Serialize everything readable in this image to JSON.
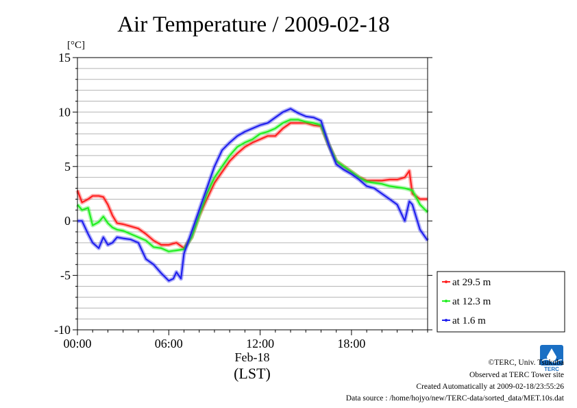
{
  "chart_data": {
    "type": "line",
    "title": "Air Temperature / 2009-02-18",
    "ylabel": "[°C]",
    "xlabel": "(LST)",
    "date_label": "Feb-18",
    "ylim": [
      -10,
      15
    ],
    "yticks": [
      15,
      10,
      5,
      0,
      -5,
      -10
    ],
    "ytick_labels": [
      "15",
      "10",
      "5",
      "0",
      "-5",
      "-10"
    ],
    "xlim": [
      0,
      23
    ],
    "xticks": [
      0,
      6,
      12,
      18
    ],
    "xtick_labels": [
      "00:00",
      "06:00",
      "12:00",
      "18:00"
    ],
    "grid": "horizontal, every 1 °C",
    "legend_position": "right, below plot top",
    "x_unit": "hours LST",
    "series": [
      {
        "name": "at 29.5 m",
        "color": "#ff2020",
        "x": [
          0,
          0.3,
          0.7,
          1.0,
          1.4,
          1.7,
          2.0,
          2.3,
          2.6,
          3.0,
          3.5,
          4.0,
          4.5,
          5.0,
          5.5,
          6.0,
          6.5,
          7.0,
          7.5,
          8.0,
          8.5,
          9.0,
          9.5,
          10.0,
          10.5,
          11.0,
          11.5,
          12.0,
          12.5,
          13.0,
          13.5,
          14.0,
          14.5,
          15.0,
          15.5,
          16.0,
          16.5,
          17.0,
          17.5,
          18.0,
          18.5,
          19.0,
          19.5,
          20.0,
          20.5,
          21.0,
          21.5,
          21.8,
          22.0,
          22.5,
          23.0
        ],
        "values": [
          2.8,
          1.7,
          2.0,
          2.3,
          2.3,
          2.2,
          1.5,
          0.5,
          -0.2,
          -0.3,
          -0.5,
          -0.7,
          -1.2,
          -1.8,
          -2.2,
          -2.2,
          -2.0,
          -2.5,
          -1.5,
          0.5,
          2.0,
          3.5,
          4.5,
          5.5,
          6.2,
          6.8,
          7.2,
          7.5,
          7.8,
          7.8,
          8.5,
          9.0,
          9.0,
          9.0,
          8.8,
          8.7,
          7.0,
          5.5,
          5.0,
          4.5,
          4.0,
          3.7,
          3.7,
          3.7,
          3.8,
          3.8,
          4.0,
          4.6,
          2.5,
          2.0,
          2.0
        ]
      },
      {
        "name": "at 12.3 m",
        "color": "#20ee20",
        "x": [
          0,
          0.3,
          0.7,
          1.0,
          1.4,
          1.7,
          2.0,
          2.3,
          2.6,
          3.0,
          3.5,
          4.0,
          4.5,
          5.0,
          5.5,
          6.0,
          6.5,
          7.0,
          7.5,
          8.0,
          8.5,
          9.0,
          9.5,
          10.0,
          10.5,
          11.0,
          11.5,
          12.0,
          12.5,
          13.0,
          13.5,
          14.0,
          14.5,
          15.0,
          15.5,
          16.0,
          16.5,
          17.0,
          17.5,
          18.0,
          18.5,
          19.0,
          19.5,
          20.0,
          20.5,
          21.0,
          21.5,
          22.0,
          22.5,
          23.0
        ],
        "values": [
          1.5,
          1.0,
          1.2,
          -0.4,
          -0.1,
          0.4,
          -0.2,
          -0.6,
          -0.8,
          -0.9,
          -1.2,
          -1.5,
          -1.8,
          -2.4,
          -2.5,
          -2.8,
          -2.7,
          -2.6,
          -1.5,
          0.5,
          2.5,
          4.0,
          5.0,
          6.0,
          6.8,
          7.2,
          7.5,
          8.0,
          8.2,
          8.5,
          9.0,
          9.3,
          9.3,
          9.1,
          9.0,
          8.8,
          7.0,
          5.5,
          5.0,
          4.5,
          4.0,
          3.6,
          3.5,
          3.4,
          3.2,
          3.1,
          3.0,
          2.8,
          1.5,
          0.8
        ]
      },
      {
        "name": "at 1.6 m",
        "color": "#2020ee",
        "x": [
          0,
          0.3,
          0.7,
          1.0,
          1.4,
          1.7,
          2.0,
          2.3,
          2.6,
          3.0,
          3.5,
          4.0,
          4.5,
          5.0,
          5.5,
          6.0,
          6.3,
          6.5,
          6.8,
          7.0,
          7.5,
          8.0,
          8.5,
          9.0,
          9.5,
          10.0,
          10.5,
          11.0,
          11.5,
          12.0,
          12.5,
          13.0,
          13.5,
          14.0,
          14.5,
          15.0,
          15.5,
          16.0,
          16.5,
          17.0,
          17.5,
          18.0,
          18.5,
          19.0,
          19.5,
          20.0,
          20.5,
          21.0,
          21.5,
          21.8,
          22.0,
          22.5,
          23.0
        ],
        "values": [
          0.0,
          0.0,
          -1.2,
          -2.0,
          -2.5,
          -1.5,
          -2.2,
          -2.0,
          -1.5,
          -1.6,
          -1.7,
          -2.0,
          -3.5,
          -4.0,
          -4.8,
          -5.5,
          -5.3,
          -4.7,
          -5.3,
          -3.0,
          -1.0,
          1.0,
          3.0,
          5.0,
          6.5,
          7.2,
          7.8,
          8.2,
          8.5,
          8.8,
          9.0,
          9.5,
          10.0,
          10.3,
          9.9,
          9.6,
          9.5,
          9.2,
          7.0,
          5.2,
          4.7,
          4.3,
          3.8,
          3.2,
          3.0,
          2.5,
          2.0,
          1.5,
          0.0,
          1.8,
          1.5,
          -0.8,
          -1.8
        ]
      }
    ]
  },
  "credits": {
    "copyright": "©TERC, Univ. Tsukuba",
    "observed": "Observed at TERC Tower site",
    "created": "Created Automatically at 2009-02-18/23:55:26",
    "source": "Data source : /home/hojyo/new/TERC-data/sorted_data/MET.10s.dat"
  },
  "logo": {
    "icon": "terc-logo-icon",
    "text": "TERC",
    "color": "#1a6fc4"
  }
}
